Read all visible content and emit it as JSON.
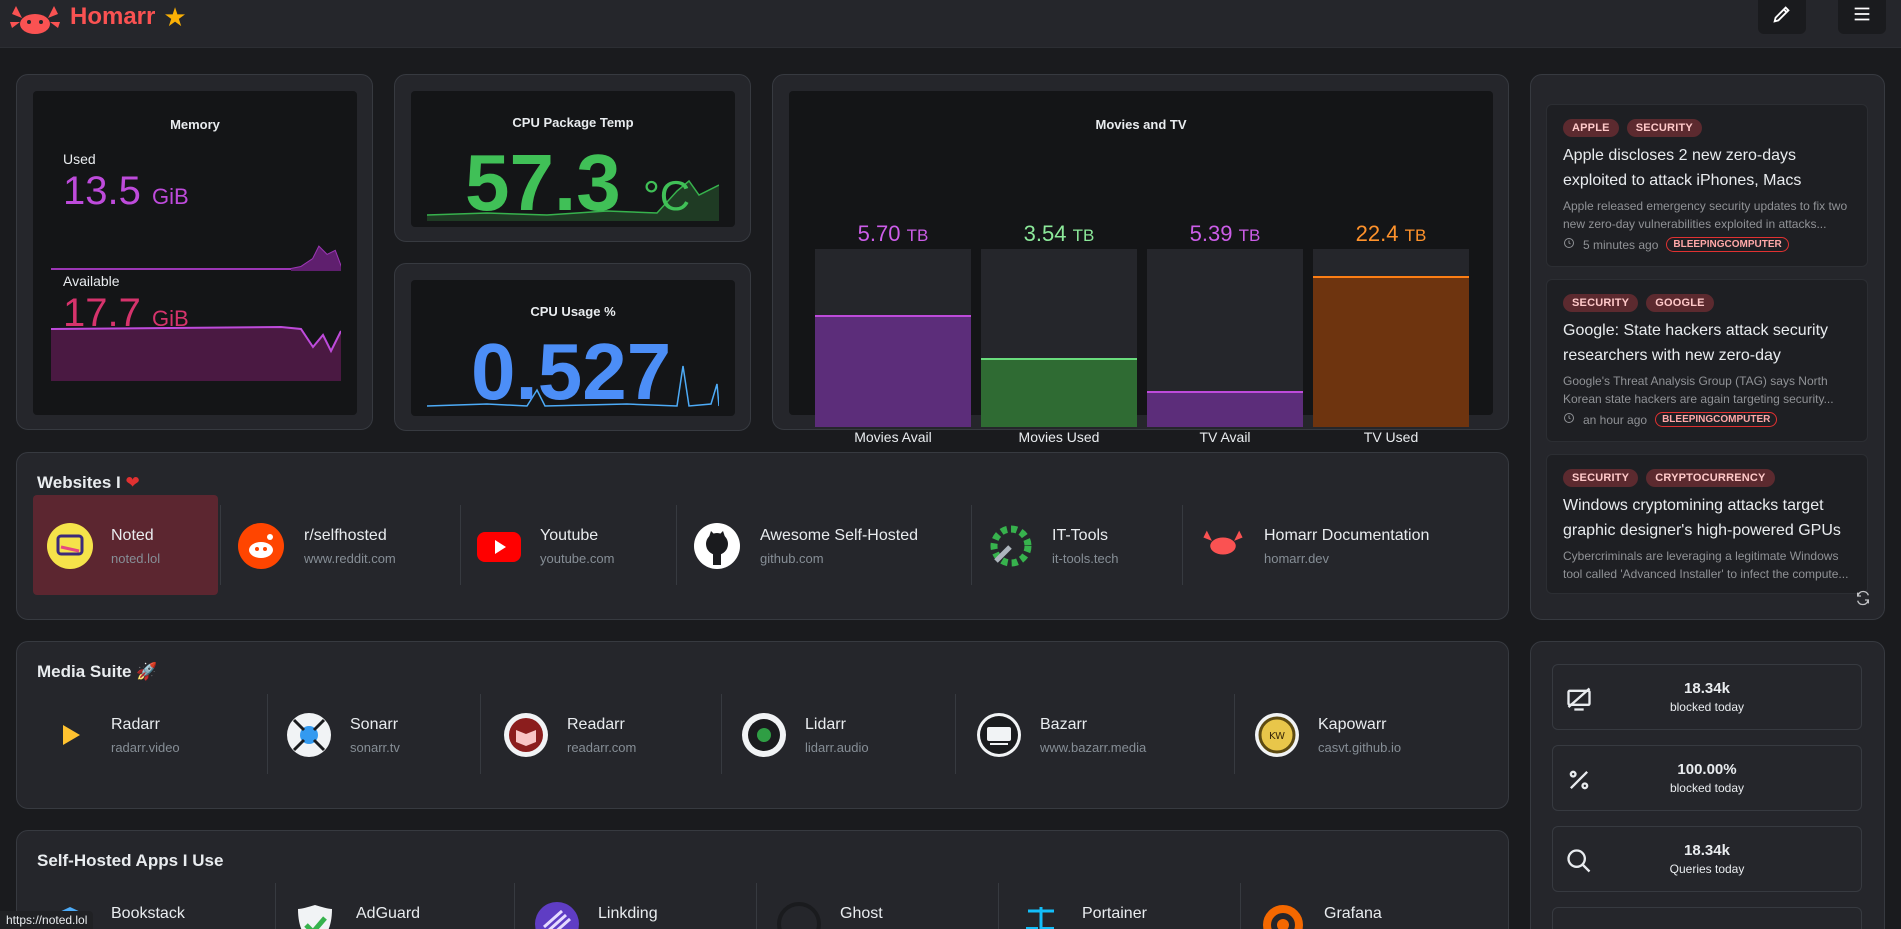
{
  "header": {
    "title": "Homarr"
  },
  "memory": {
    "title": "Memory",
    "used_label": "Used",
    "used_value": "13.5",
    "used_unit": "GiB",
    "avail_label": "Available",
    "avail_value": "17.7",
    "avail_unit": "GiB"
  },
  "cpu_temp": {
    "title": "CPU Package Temp",
    "value": "57.3",
    "unit": "°C"
  },
  "cpu_usage": {
    "title": "CPU Usage %",
    "value": "0.527"
  },
  "media": {
    "title": "Movies and TV",
    "bars": [
      {
        "label": "Movies Avail",
        "value": "5.70",
        "unit": "TB",
        "fill": 0.63,
        "color": "#5c2d7a",
        "line": "#be4bdb",
        "text": "#cc5de8"
      },
      {
        "label": "Movies Used",
        "value": "3.54",
        "unit": "TB",
        "fill": 0.39,
        "color": "#2f6b33",
        "line": "#69db7c",
        "text": "#8ce99a"
      },
      {
        "label": "TV Avail",
        "value": "5.39",
        "unit": "TB",
        "fill": 0.2,
        "color": "#5c2d7a",
        "line": "#be4bdb",
        "text": "#cc5de8"
      },
      {
        "label": "TV Used",
        "value": "22.4",
        "unit": "TB",
        "fill": 0.85,
        "color": "#6e340f",
        "line": "#fd7e14",
        "text": "#ff922b"
      }
    ]
  },
  "websites": {
    "title": "Websites I",
    "items": [
      {
        "name": "Noted",
        "url": "noted.lol"
      },
      {
        "name": "r/selfhosted",
        "url": "www.reddit.com"
      },
      {
        "name": "Youtube",
        "url": "youtube.com"
      },
      {
        "name": "Awesome Self-Hosted",
        "url": "github.com"
      },
      {
        "name": "IT-Tools",
        "url": "it-tools.tech"
      },
      {
        "name": "Homarr Documentation",
        "url": "homarr.dev"
      }
    ]
  },
  "media_suite": {
    "title": "Media Suite 🚀",
    "items": [
      {
        "name": "Radarr",
        "url": "radarr.video"
      },
      {
        "name": "Sonarr",
        "url": "sonarr.tv"
      },
      {
        "name": "Readarr",
        "url": "readarr.com"
      },
      {
        "name": "Lidarr",
        "url": "lidarr.audio"
      },
      {
        "name": "Bazarr",
        "url": "www.bazarr.media"
      },
      {
        "name": "Kapowarr",
        "url": "casvt.github.io"
      }
    ]
  },
  "self_hosted": {
    "title": "Self-Hosted Apps I Use",
    "items": [
      {
        "name": "Bookstack"
      },
      {
        "name": "AdGuard"
      },
      {
        "name": "Linkding"
      },
      {
        "name": "Ghost"
      },
      {
        "name": "Portainer"
      },
      {
        "name": "Grafana"
      }
    ]
  },
  "rss": {
    "items": [
      {
        "tags": [
          "APPLE",
          "SECURITY"
        ],
        "title": "Apple discloses 2 new zero-days exploited to attack iPhones, Macs",
        "desc": "Apple released emergency security updates to fix two new zero-day vulnerabilities exploited in attacks...",
        "time": "5 minutes ago",
        "source": "BLEEPINGCOMPUTER"
      },
      {
        "tags": [
          "SECURITY",
          "GOOGLE"
        ],
        "title": "Google: State hackers attack security researchers with new zero-day",
        "desc": "Google's Threat Analysis Group (TAG) says North Korean state hackers are again targeting security...",
        "time": "an hour ago",
        "source": "BLEEPINGCOMPUTER"
      },
      {
        "tags": [
          "SECURITY",
          "CRYPTOCURRENCY"
        ],
        "title": "Windows cryptomining attacks target graphic designer's high-powered GPUs",
        "desc": "Cybercriminals are leveraging a legitimate Windows tool called 'Advanced Installer' to infect the compute...",
        "time": "",
        "source": ""
      }
    ]
  },
  "dns_stats": [
    {
      "value": "18.34k",
      "label": "blocked today",
      "icon": "blocked-screen-icon"
    },
    {
      "value": "100.00%",
      "label": "blocked today",
      "icon": "percent-icon"
    },
    {
      "value": "18.34k",
      "label": "Queries today",
      "icon": "search-icon"
    }
  ],
  "status_bar": {
    "url": "https://noted.lol"
  }
}
